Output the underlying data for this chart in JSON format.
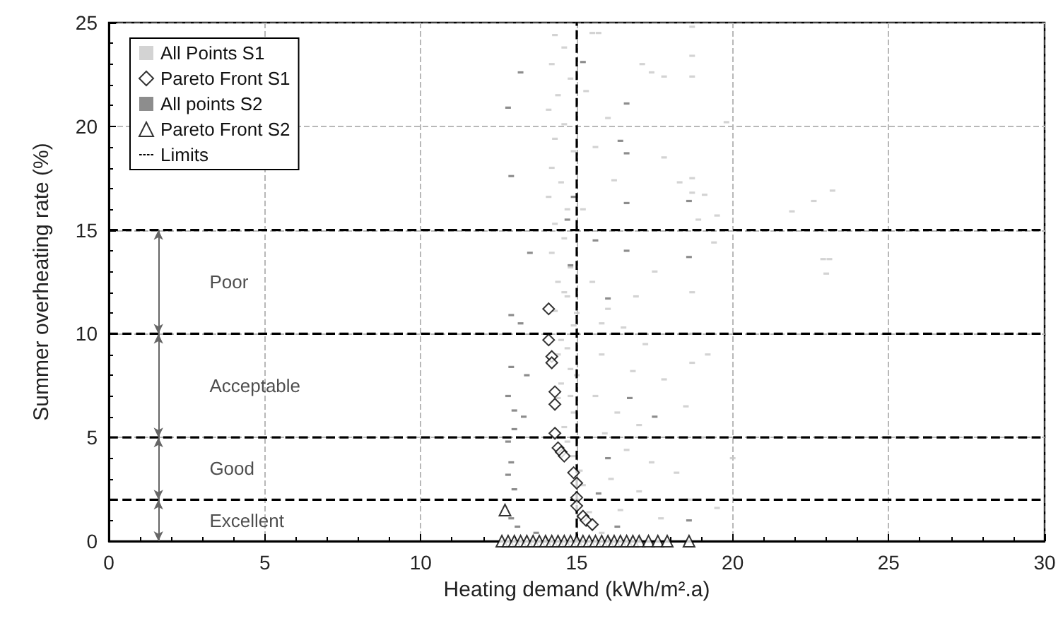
{
  "chart_data": {
    "type": "scatter",
    "xlabel": "Heating demand (kWh/m².a)",
    "ylabel": "Summer overheating rate (%)",
    "xlim": [
      0,
      30
    ],
    "xticks": [
      0,
      5,
      10,
      15,
      20,
      25,
      30
    ],
    "ylim": [
      0,
      25
    ],
    "yticks": [
      0,
      5,
      10,
      15,
      20,
      25
    ],
    "grid": true,
    "legend": "top left",
    "series": [
      {
        "name": "All Points S1",
        "type": "scatter",
        "marker": "square",
        "color": "#c8c8c8",
        "x": [
          14.3,
          14.6,
          14.2,
          14.8,
          14.4,
          14.1,
          14.6,
          14.3,
          14.9,
          14.2,
          14.5,
          14.1,
          14.7,
          14.3,
          14.6,
          14.2,
          14.8,
          14.4,
          14.7,
          14.3,
          14.9,
          14.5,
          14.4,
          14.8,
          14.5,
          14.4,
          14.9,
          14.6,
          14.7,
          14.9,
          15.1,
          15.2,
          15.3,
          15.4,
          15.6,
          15.8,
          14.6,
          14.7,
          14.8,
          14.9,
          15.0,
          15.0,
          15.5,
          15.7,
          18.7,
          17.1,
          17.4,
          17.8,
          18.7,
          18.7,
          16.0,
          19.8,
          17.8,
          18.3,
          18.7,
          18.7,
          19.1,
          19.5,
          18.9,
          19.4,
          23.2,
          22.6,
          22.9,
          23.1,
          23.0,
          21.9,
          15.3,
          15.6,
          16.2,
          15.2,
          15.5,
          16.0,
          16.5,
          17.2,
          15.8,
          16.8,
          17.8,
          18.5,
          15.6,
          16.3,
          17.0,
          19.0,
          15.9,
          16.6,
          17.4,
          18.2,
          16.1,
          17.0,
          18.6,
          19.5,
          16.4,
          17.7,
          15.8,
          16.9,
          18.7,
          18.7,
          18.7,
          20.0,
          19.2,
          17.5
        ],
        "values": [
          24.4,
          23.8,
          23.0,
          22.3,
          21.5,
          20.8,
          20.1,
          19.4,
          18.8,
          18.0,
          17.3,
          16.6,
          16.0,
          15.3,
          14.6,
          13.9,
          13.2,
          12.5,
          11.8,
          11.1,
          10.4,
          9.7,
          9.0,
          8.3,
          7.6,
          6.9,
          6.2,
          5.5,
          4.8,
          4.1,
          3.4,
          2.7,
          2.0,
          1.4,
          0.8,
          0.4,
          12.0,
          9.3,
          7.0,
          5.0,
          8.0,
          11.0,
          24.5,
          24.5,
          24.8,
          23.0,
          22.6,
          22.4,
          23.4,
          22.4,
          20.4,
          20.2,
          18.5,
          17.3,
          17.5,
          16.8,
          16.7,
          15.7,
          15.5,
          14.4,
          16.9,
          16.4,
          13.6,
          13.6,
          12.9,
          15.9,
          21.7,
          19.0,
          17.4,
          16.0,
          12.5,
          11.2,
          10.3,
          9.5,
          9.0,
          8.2,
          7.8,
          6.5,
          7.0,
          6.2,
          5.6,
          5.0,
          5.2,
          4.4,
          3.8,
          3.3,
          3.0,
          2.4,
          2.0,
          1.6,
          1.5,
          1.1,
          10.5,
          11.8,
          10.0,
          8.6,
          12.0,
          4.0,
          9.0,
          13.0
        ]
      },
      {
        "name": "Pareto Front S1",
        "type": "scatter",
        "marker": "diamond",
        "color": "#000000",
        "x": [
          14.1,
          14.1,
          14.2,
          14.2,
          14.3,
          14.3,
          14.3,
          14.4,
          14.5,
          14.6,
          14.9,
          15.0,
          15.0,
          15.0,
          15.2,
          15.3,
          15.5
        ],
        "values": [
          11.2,
          9.7,
          8.9,
          8.6,
          7.2,
          6.6,
          5.2,
          4.5,
          4.3,
          4.1,
          3.3,
          2.8,
          2.1,
          1.7,
          1.2,
          1.0,
          0.8
        ]
      },
      {
        "name": "All points S2",
        "type": "scatter",
        "marker": "square",
        "color": "#707070",
        "x": [
          13.2,
          12.8,
          12.9,
          15.2,
          16.6,
          16.4,
          16.6,
          16.6,
          14.9,
          14.7,
          13.5,
          15.6,
          16.6,
          18.6,
          18.6,
          14.8,
          12.9,
          13.2,
          12.9,
          12.8,
          13.0,
          13.3,
          12.8,
          12.9,
          12.8,
          13.0,
          12.9,
          13.1,
          13.7,
          16.7,
          16.0,
          18.6,
          16.3,
          13.0,
          13.4,
          16.0,
          17.5,
          15.7
        ],
        "values": [
          22.6,
          20.9,
          17.6,
          23.1,
          21.1,
          19.3,
          18.7,
          16.3,
          16.6,
          15.5,
          13.9,
          14.5,
          14.0,
          13.7,
          16.4,
          13.3,
          10.9,
          10.5,
          8.4,
          7.0,
          6.3,
          6.0,
          4.8,
          3.8,
          3.2,
          2.5,
          1.1,
          0.7,
          0.4,
          6.9,
          11.7,
          1.0,
          0.7,
          5.4,
          8.0,
          4.0,
          6.0,
          2.3
        ]
      },
      {
        "name": "Pareto Front S2",
        "type": "scatter",
        "marker": "triangle",
        "color": "#000000",
        "x": [
          12.7,
          12.6,
          12.8,
          13.0,
          13.2,
          13.4,
          13.6,
          13.8,
          14.0,
          14.2,
          14.4,
          14.6,
          14.8,
          15.0,
          15.2,
          15.4,
          15.6,
          15.8,
          16.0,
          16.2,
          16.4,
          16.6,
          16.8,
          17.0,
          17.3,
          17.6,
          17.9,
          18.6
        ],
        "values": [
          1.5,
          0,
          0,
          0,
          0,
          0,
          0,
          0,
          0,
          0,
          0,
          0,
          0,
          0,
          0,
          0,
          0,
          0,
          0,
          0,
          0,
          0,
          0,
          0,
          0,
          0,
          0,
          0
        ]
      },
      {
        "name": "Limits",
        "type": "line",
        "line_style": "dashed",
        "marker": "none",
        "color": "#000000",
        "x": [
          0,
          30
        ],
        "values": [
          2,
          2
        ]
      },
      {
        "type": "line",
        "line_style": "dashed",
        "marker": "none",
        "color": "#000000",
        "x": [
          0,
          30
        ],
        "values": [
          5,
          5
        ]
      },
      {
        "type": "line",
        "line_style": "dashed",
        "marker": "none",
        "color": "#000000",
        "x": [
          0,
          30
        ],
        "values": [
          10,
          10
        ]
      },
      {
        "type": "line",
        "line_style": "dashed",
        "marker": "none",
        "color": "#000000",
        "x": [
          0,
          30
        ],
        "values": [
          15,
          15
        ]
      },
      {
        "type": "line",
        "line_style": "dashed",
        "marker": "none",
        "color": "#000000",
        "x": [
          15,
          15
        ],
        "values": [
          0,
          25
        ]
      }
    ],
    "annotations": [
      "Poor",
      "Acceptable",
      "Good",
      "Excellent"
    ]
  }
}
